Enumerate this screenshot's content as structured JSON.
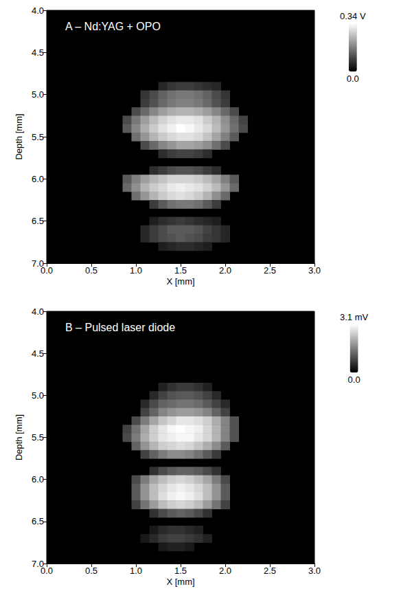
{
  "chart_data": [
    {
      "type": "heatmap",
      "title": "A – Nd:YAG + OPO",
      "x_label": "X [mm]",
      "y_label": "Depth [mm]",
      "xlim": [
        0,
        3
      ],
      "xticks": [
        {
          "value": 0,
          "label": "0.0"
        },
        0.5,
        {
          "value": 1,
          "label": "1.0"
        },
        1.5,
        {
          "value": 2,
          "label": "2.0"
        },
        2.5,
        {
          "value": 3,
          "label": "3.0"
        }
      ],
      "ylim": [
        7,
        4
      ],
      "yticks": [
        {
          "value": 4,
          "label": "4.0"
        },
        4.5,
        {
          "value": 5,
          "label": "5.0"
        },
        5.5,
        {
          "value": 6,
          "label": "6.0"
        },
        6.5,
        {
          "value": 7,
          "label": "7.0"
        }
      ],
      "colorbar": {
        "range": [
          0,
          0.34
        ],
        "ticks": [
          {
            "value": 0,
            "label": "0.0"
          },
          {
            "value": 0.34,
            "label": "0.34 V"
          }
        ]
      },
      "cell_size": 0.1,
      "rows": [
        {
          "depth": 4.9,
          "x_start": 1.3,
          "values": [
            0.05,
            0.07,
            0.08,
            0.08,
            0.07,
            0.06,
            0.05
          ]
        },
        {
          "depth": 5.0,
          "x_start": 1.1,
          "values": [
            0.07,
            0.1,
            0.13,
            0.15,
            0.16,
            0.16,
            0.15,
            0.13,
            0.1,
            0.07
          ]
        },
        {
          "depth": 5.1,
          "x_start": 1.1,
          "values": [
            0.08,
            0.11,
            0.14,
            0.16,
            0.17,
            0.17,
            0.16,
            0.14,
            0.11,
            0.08
          ]
        },
        {
          "depth": 5.2,
          "x_start": 1.0,
          "values": [
            0.1,
            0.14,
            0.18,
            0.21,
            0.23,
            0.24,
            0.24,
            0.23,
            0.21,
            0.18,
            0.14,
            0.1
          ]
        },
        {
          "depth": 5.3,
          "x_start": 0.9,
          "values": [
            0.1,
            0.16,
            0.21,
            0.25,
            0.28,
            0.3,
            0.31,
            0.31,
            0.3,
            0.27,
            0.24,
            0.19,
            0.14,
            0.09
          ]
        },
        {
          "depth": 5.4,
          "x_start": 0.9,
          "values": [
            0.12,
            0.18,
            0.23,
            0.27,
            0.3,
            0.32,
            0.34,
            0.33,
            0.31,
            0.29,
            0.25,
            0.2,
            0.15,
            0.1
          ]
        },
        {
          "depth": 5.5,
          "x_start": 1.0,
          "values": [
            0.15,
            0.2,
            0.24,
            0.27,
            0.29,
            0.3,
            0.3,
            0.29,
            0.26,
            0.22,
            0.17,
            0.12
          ]
        },
        {
          "depth": 5.6,
          "x_start": 1.1,
          "values": [
            0.1,
            0.14,
            0.18,
            0.2,
            0.22,
            0.22,
            0.21,
            0.19,
            0.15,
            0.1
          ]
        },
        {
          "depth": 5.7,
          "x_start": 1.3,
          "values": [
            0.06,
            0.08,
            0.09,
            0.09,
            0.08,
            0.06
          ]
        },
        {
          "depth": 5.9,
          "x_start": 1.2,
          "values": [
            0.06,
            0.08,
            0.1,
            0.11,
            0.11,
            0.1,
            0.08,
            0.06
          ]
        },
        {
          "depth": 6.0,
          "x_start": 0.9,
          "values": [
            0.12,
            0.17,
            0.21,
            0.24,
            0.26,
            0.28,
            0.28,
            0.28,
            0.27,
            0.25,
            0.22,
            0.17,
            0.12
          ]
        },
        {
          "depth": 6.1,
          "x_start": 0.9,
          "values": [
            0.14,
            0.19,
            0.24,
            0.27,
            0.29,
            0.31,
            0.32,
            0.31,
            0.3,
            0.28,
            0.25,
            0.2,
            0.14
          ]
        },
        {
          "depth": 6.2,
          "x_start": 1.0,
          "values": [
            0.15,
            0.2,
            0.24,
            0.27,
            0.29,
            0.3,
            0.29,
            0.27,
            0.24,
            0.19,
            0.14
          ]
        },
        {
          "depth": 6.3,
          "x_start": 1.2,
          "values": [
            0.08,
            0.12,
            0.15,
            0.16,
            0.16,
            0.15,
            0.12,
            0.08
          ]
        },
        {
          "depth": 6.5,
          "x_start": 1.2,
          "values": [
            0.04,
            0.06,
            0.07,
            0.08,
            0.07,
            0.06,
            0.05,
            0.04
          ]
        },
        {
          "depth": 6.6,
          "x_start": 1.1,
          "values": [
            0.05,
            0.08,
            0.1,
            0.12,
            0.12,
            0.12,
            0.11,
            0.09,
            0.07,
            0.05
          ]
        },
        {
          "depth": 6.7,
          "x_start": 1.1,
          "values": [
            0.05,
            0.08,
            0.1,
            0.11,
            0.12,
            0.11,
            0.1,
            0.08,
            0.07,
            0.05
          ]
        },
        {
          "depth": 6.8,
          "x_start": 1.3,
          "values": [
            0.04,
            0.05,
            0.06,
            0.06,
            0.05,
            0.04
          ]
        }
      ]
    },
    {
      "type": "heatmap",
      "title": "B – Pulsed laser diode",
      "x_label": "X [mm]",
      "y_label": "Depth [mm]",
      "xlim": [
        0,
        3
      ],
      "xticks": [
        {
          "value": 0,
          "label": "0.0"
        },
        0.5,
        {
          "value": 1,
          "label": "1.0"
        },
        1.5,
        {
          "value": 2,
          "label": "2.0"
        },
        2.5,
        {
          "value": 3,
          "label": "3.0"
        }
      ],
      "ylim": [
        7,
        4
      ],
      "yticks": [
        {
          "value": 4,
          "label": "4.0"
        },
        4.5,
        {
          "value": 5,
          "label": "5.0"
        },
        5.5,
        {
          "value": 6,
          "label": "6.0"
        },
        6.5,
        {
          "value": 7,
          "label": "7.0"
        }
      ],
      "colorbar": {
        "range": [
          0,
          3.1
        ],
        "ticks": [
          {
            "value": 0,
            "label": "0.0"
          },
          {
            "value": 3.1,
            "label": "3.1 mV"
          }
        ]
      },
      "cell_size": 0.1,
      "rows": [
        {
          "depth": 4.9,
          "x_start": 1.3,
          "values": [
            0.4,
            0.6,
            0.7,
            0.7,
            0.6,
            0.4
          ]
        },
        {
          "depth": 5.0,
          "x_start": 1.2,
          "values": [
            0.5,
            0.8,
            1.0,
            1.1,
            1.1,
            1.0,
            0.8,
            0.5
          ]
        },
        {
          "depth": 5.1,
          "x_start": 1.1,
          "values": [
            0.5,
            0.9,
            1.2,
            1.3,
            1.4,
            1.4,
            1.3,
            1.1,
            0.8,
            0.5
          ]
        },
        {
          "depth": 5.2,
          "x_start": 1.1,
          "values": [
            0.8,
            1.2,
            1.6,
            1.8,
            1.9,
            1.9,
            1.8,
            1.6,
            1.2,
            0.8
          ]
        },
        {
          "depth": 5.3,
          "x_start": 1.0,
          "values": [
            0.9,
            1.5,
            2.0,
            2.4,
            2.6,
            2.8,
            2.8,
            2.7,
            2.5,
            2.1,
            1.6,
            1.0
          ]
        },
        {
          "depth": 5.4,
          "x_start": 0.9,
          "values": [
            0.8,
            1.4,
            2.0,
            2.5,
            2.8,
            3.0,
            3.1,
            3.0,
            2.9,
            2.6,
            2.2,
            1.6,
            1.0
          ]
        },
        {
          "depth": 5.5,
          "x_start": 0.9,
          "values": [
            0.9,
            1.5,
            2.1,
            2.5,
            2.8,
            2.9,
            3.0,
            3.0,
            2.8,
            2.6,
            2.2,
            1.6,
            1.0
          ]
        },
        {
          "depth": 5.6,
          "x_start": 1.0,
          "values": [
            1.2,
            1.8,
            2.2,
            2.5,
            2.6,
            2.7,
            2.6,
            2.4,
            2.1,
            1.7,
            1.1
          ]
        },
        {
          "depth": 5.7,
          "x_start": 1.1,
          "values": [
            0.8,
            1.2,
            1.5,
            1.7,
            1.7,
            1.6,
            1.4,
            1.1,
            0.7
          ]
        },
        {
          "depth": 5.9,
          "x_start": 1.2,
          "values": [
            0.6,
            0.9,
            1.1,
            1.2,
            1.2,
            1.1,
            0.9,
            0.6
          ]
        },
        {
          "depth": 6.0,
          "x_start": 1.0,
          "values": [
            0.9,
            1.5,
            2.0,
            2.3,
            2.5,
            2.6,
            2.5,
            2.3,
            2.0,
            1.5,
            0.9
          ]
        },
        {
          "depth": 6.1,
          "x_start": 1.0,
          "values": [
            1.1,
            1.8,
            2.3,
            2.6,
            2.8,
            2.9,
            2.8,
            2.6,
            2.3,
            1.8,
            1.1
          ]
        },
        {
          "depth": 6.2,
          "x_start": 1.0,
          "values": [
            1.1,
            1.8,
            2.3,
            2.7,
            2.9,
            3.0,
            2.9,
            2.7,
            2.3,
            1.8,
            1.1
          ]
        },
        {
          "depth": 6.3,
          "x_start": 1.0,
          "values": [
            0.8,
            1.4,
            1.9,
            2.3,
            2.5,
            2.6,
            2.5,
            2.3,
            1.9,
            1.4,
            0.8
          ]
        },
        {
          "depth": 6.4,
          "x_start": 1.2,
          "values": [
            0.6,
            0.9,
            1.1,
            1.2,
            1.1,
            0.9,
            0.6
          ]
        },
        {
          "depth": 6.6,
          "x_start": 1.2,
          "values": [
            0.3,
            0.5,
            0.6,
            0.6,
            0.5,
            0.4
          ]
        },
        {
          "depth": 6.7,
          "x_start": 1.1,
          "values": [
            0.3,
            0.5,
            0.7,
            0.8,
            0.8,
            0.7,
            0.6,
            0.4
          ]
        },
        {
          "depth": 6.8,
          "x_start": 1.3,
          "values": [
            0.3,
            0.4,
            0.4,
            0.3
          ]
        }
      ]
    }
  ]
}
